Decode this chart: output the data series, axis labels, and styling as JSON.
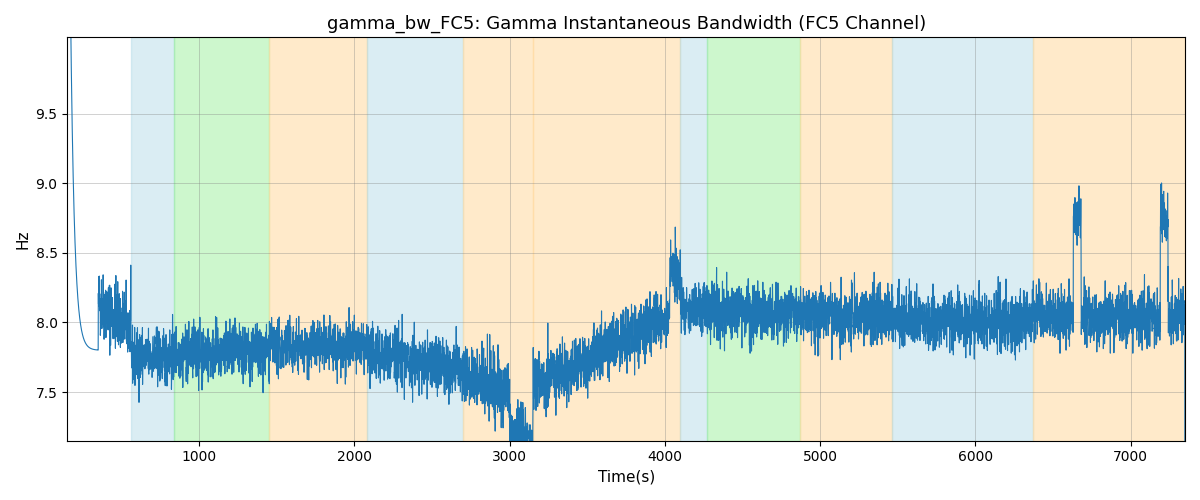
{
  "title": "gamma_bw_FC5: Gamma Instantaneous Bandwidth (FC5 Channel)",
  "xlabel": "Time(s)",
  "ylabel": "Hz",
  "xlim": [
    150,
    7350
  ],
  "ylim": [
    7.15,
    10.05
  ],
  "yticks": [
    7.5,
    8.0,
    8.5,
    9.0,
    9.5
  ],
  "xticks": [
    1000,
    2000,
    3000,
    4000,
    5000,
    6000,
    7000
  ],
  "line_color": "#1f77b4",
  "line_width": 0.8,
  "bg_spans": [
    {
      "xmin": 560,
      "xmax": 840,
      "color": "#ADD8E6",
      "alpha": 0.45
    },
    {
      "xmin": 840,
      "xmax": 1450,
      "color": "#90EE90",
      "alpha": 0.45
    },
    {
      "xmin": 1450,
      "xmax": 2080,
      "color": "#FFDAA0",
      "alpha": 0.55
    },
    {
      "xmin": 2080,
      "xmax": 2700,
      "color": "#ADD8E6",
      "alpha": 0.45
    },
    {
      "xmin": 2700,
      "xmax": 3150,
      "color": "#FFDAA0",
      "alpha": 0.55
    },
    {
      "xmin": 3150,
      "xmax": 4100,
      "color": "#FFDAA0",
      "alpha": 0.55
    },
    {
      "xmin": 4100,
      "xmax": 4270,
      "color": "#ADD8E6",
      "alpha": 0.45
    },
    {
      "xmin": 4270,
      "xmax": 4870,
      "color": "#90EE90",
      "alpha": 0.45
    },
    {
      "xmin": 4870,
      "xmax": 5460,
      "color": "#FFDAA0",
      "alpha": 0.55
    },
    {
      "xmin": 5460,
      "xmax": 6370,
      "color": "#ADD8E6",
      "alpha": 0.45
    },
    {
      "xmin": 6370,
      "xmax": 7350,
      "color": "#FFDAA0",
      "alpha": 0.55
    }
  ],
  "seed": 42,
  "figsize": [
    12,
    5
  ],
  "dpi": 100
}
